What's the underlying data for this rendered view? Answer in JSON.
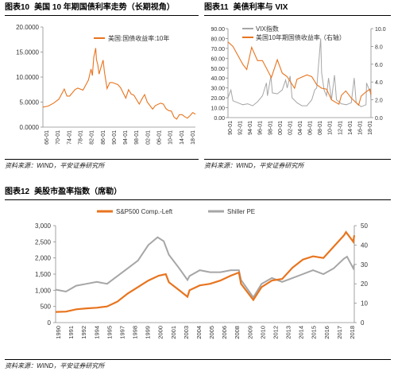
{
  "colors": {
    "orange": "#E8741E",
    "gray": "#A6A6A6",
    "axis": "#8C8C8C"
  },
  "chart_data": [
    {
      "id": "fig10",
      "type": "line",
      "label_num": "图表10",
      "title": "美国 10 年期国债利率走势（长期视角）",
      "source": "资料来源：WIND，平安证券研究所",
      "legend_position": "top-center",
      "x_ticks": [
        "66-01",
        "70-01",
        "74-01",
        "78-01",
        "82-01",
        "86-01",
        "90-01",
        "94-01",
        "98-01",
        "02-01",
        "06-01",
        "10-01",
        "14-01",
        "18-01"
      ],
      "x_range": [
        1962,
        2019
      ],
      "y_ticks": [
        "0.0000",
        "5.0000",
        "10.0000",
        "15.0000",
        "20.0000"
      ],
      "ylim": [
        0,
        20
      ],
      "series": [
        {
          "name": "美国:国债收益率:10年",
          "color": "#E8741E",
          "x": [
            1962,
            1964,
            1966,
            1968,
            1970,
            1971,
            1972,
            1974,
            1975,
            1977,
            1978,
            1979,
            1980,
            1980.5,
            1981,
            1981.75,
            1982,
            1982.5,
            1983,
            1984,
            1984.5,
            1985,
            1986,
            1987,
            1988,
            1990,
            1991,
            1993,
            1994,
            1995,
            1996,
            1998,
            1999,
            2000,
            2001,
            2003,
            2004,
            2006,
            2007,
            2008,
            2009,
            2010,
            2011,
            2012,
            2013,
            2014,
            2015,
            2016,
            2017,
            2018,
            2019
          ],
          "y": [
            4.0,
            4.2,
            4.8,
            5.6,
            7.6,
            6.2,
            6.2,
            7.5,
            7.8,
            7.4,
            8.4,
            9.4,
            11.6,
            10.3,
            13.9,
            15.8,
            13.5,
            12.5,
            10.6,
            12.5,
            13.4,
            11.0,
            7.7,
            8.9,
            8.9,
            8.5,
            7.9,
            5.8,
            7.5,
            6.6,
            6.4,
            4.6,
            5.6,
            6.5,
            5.0,
            3.6,
            4.3,
            4.8,
            4.6,
            3.7,
            3.3,
            3.2,
            2.0,
            1.6,
            2.5,
            2.5,
            2.1,
            1.8,
            2.3,
            2.9,
            2.6
          ]
        }
      ]
    },
    {
      "id": "fig11",
      "type": "line",
      "label_num": "图表11",
      "title": "美债利率与 VIX",
      "source": "资料来源：WIND，平安证券研究所",
      "legend_position": "top-left",
      "x_ticks": [
        "90-01",
        "92-01",
        "94-01",
        "96-01",
        "98-01",
        "00-01",
        "02-01",
        "04-01",
        "06-01",
        "08-01",
        "10-01",
        "12-01",
        "14-01",
        "16-01",
        "18-01"
      ],
      "x_range": [
        1990,
        2019
      ],
      "y_left_ticks": [
        "0.00",
        "10.00",
        "20.00",
        "30.00",
        "40.00",
        "50.00",
        "60.00",
        "70.00",
        "80.00",
        "90.00"
      ],
      "y_left_lim": [
        0,
        90
      ],
      "y_right_ticks": [
        "0.0",
        "2.0",
        "4.0",
        "6.0",
        "8.0",
        "10.0"
      ],
      "y_right_lim": [
        0,
        10
      ],
      "series": [
        {
          "name": "VIX指数",
          "axis": "left",
          "color": "#A6A6A6",
          "x": [
            1990,
            1990.6,
            1991,
            1992,
            1993,
            1994,
            1995,
            1996,
            1997,
            1997.8,
            1998,
            1998.7,
            1999,
            2000,
            2001,
            2001.7,
            2002,
            2002.6,
            2003,
            2004,
            2005,
            2006,
            2007,
            2007.6,
            2008,
            2008.8,
            2009,
            2009.5,
            2010,
            2010.4,
            2011,
            2011.6,
            2012,
            2013,
            2014,
            2015,
            2015.6,
            2016,
            2017,
            2018,
            2018.1,
            2018.9,
            2019
          ],
          "y": [
            20,
            28,
            17,
            15,
            13,
            14,
            12,
            16,
            22,
            35,
            22,
            42,
            25,
            24,
            28,
            38,
            30,
            42,
            20,
            15,
            12,
            12,
            18,
            28,
            30,
            80,
            45,
            28,
            22,
            40,
            18,
            43,
            18,
            14,
            13,
            15,
            40,
            15,
            11,
            13,
            35,
            25,
            17
          ]
        },
        {
          "name": "美国10年期国债收益率（右轴）",
          "axis": "right",
          "color": "#E8741E",
          "x": [
            1990,
            1991,
            1992,
            1993,
            1993.8,
            1994.8,
            1996,
            1997,
            1998.8,
            2000,
            2001,
            2002,
            2003.5,
            2004,
            2006,
            2007,
            2008,
            2009,
            2010,
            2011,
            2012.5,
            2013,
            2013.9,
            2015,
            2016.5,
            2017,
            2018,
            2018.8,
            2019
          ],
          "y": [
            8.5,
            8.0,
            7.0,
            6.0,
            5.4,
            7.9,
            6.4,
            6.4,
            4.5,
            6.5,
            5.0,
            4.6,
            3.3,
            4.3,
            4.8,
            4.6,
            3.7,
            3.3,
            3.2,
            2.0,
            1.5,
            2.5,
            3.0,
            2.2,
            1.4,
            2.4,
            2.9,
            3.2,
            2.6
          ]
        }
      ]
    },
    {
      "id": "fig12",
      "type": "line",
      "label_num": "图表12",
      "title": "美股市盈率指数（席勒）",
      "source": "资料来源：WIND，平安证券研究所",
      "legend_position": "top",
      "x_ticks": [
        "1990",
        "1991",
        "1992",
        "1994",
        "1995",
        "1997",
        "1998",
        "1999",
        "2000",
        "2001",
        "2003",
        "2004",
        "2005",
        "2006",
        "2008",
        "2009",
        "2010",
        "2012",
        "2013",
        "2014",
        "2015",
        "2016",
        "2017",
        "2018"
      ],
      "x_range": [
        1990,
        2019
      ],
      "y_left_ticks": [
        "0",
        "500",
        "1,000",
        "1,500",
        "2,000",
        "2,500",
        "3,000"
      ],
      "y_left_lim": [
        0,
        3000
      ],
      "y_right_ticks": [
        "0",
        "10",
        "20",
        "30",
        "40",
        "50"
      ],
      "y_right_lim": [
        0,
        50
      ],
      "series": [
        {
          "name": "S&P500 Comp.-Left",
          "axis": "left",
          "color": "#E8741E",
          "x": [
            1990,
            1991,
            1992,
            1993,
            1994,
            1995,
            1996,
            1997,
            1998,
            1999,
            2000,
            2000.7,
            2001,
            2002,
            2002.8,
            2003,
            2004,
            2005,
            2006,
            2007,
            2007.8,
            2008,
            2009.2,
            2010,
            2011,
            2012,
            2013,
            2014,
            2015,
            2016,
            2017,
            2018,
            2018.2,
            2018.9,
            2019
          ],
          "y": [
            330,
            340,
            410,
            440,
            460,
            500,
            650,
            900,
            1100,
            1300,
            1450,
            1500,
            1250,
            1000,
            800,
            1000,
            1150,
            1200,
            1300,
            1450,
            1550,
            1200,
            700,
            1100,
            1300,
            1350,
            1700,
            1950,
            2050,
            2000,
            2350,
            2700,
            2800,
            2500,
            2700
          ]
        },
        {
          "name": "Shiller PE",
          "axis": "right",
          "color": "#A6A6A6",
          "x": [
            1990,
            1991,
            1992,
            1993,
            1994,
            1995,
            1996,
            1997,
            1998,
            1999,
            1999.9,
            2000.5,
            2001,
            2002,
            2002.8,
            2003,
            2004,
            2005,
            2006,
            2007,
            2007.8,
            2008,
            2009.2,
            2010,
            2011,
            2012,
            2013,
            2014,
            2015,
            2016,
            2017,
            2018,
            2018.3,
            2018.9,
            2019
          ],
          "y": [
            17,
            16,
            19,
            20,
            21,
            20,
            24,
            28,
            32,
            40,
            44,
            42,
            35,
            28,
            22,
            24,
            27,
            26,
            26,
            27,
            27,
            22,
            13,
            20,
            23,
            21,
            23,
            25,
            27,
            25,
            28,
            33,
            34,
            28,
            30
          ]
        }
      ]
    }
  ]
}
